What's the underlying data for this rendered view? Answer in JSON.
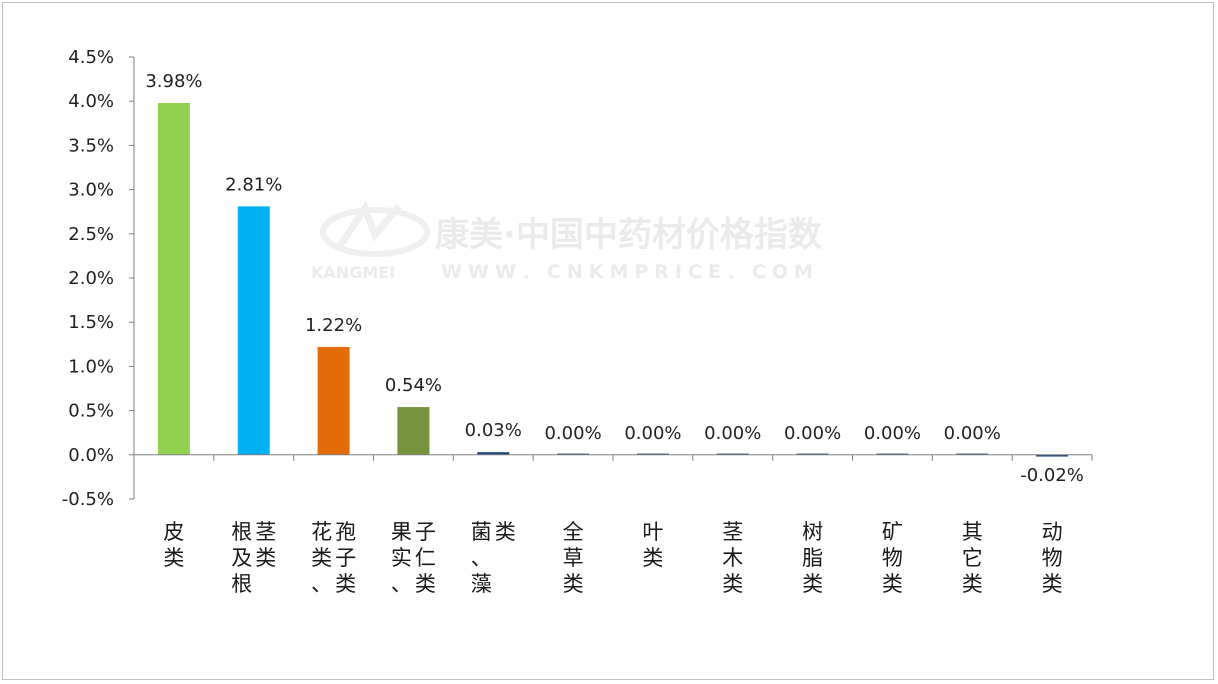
{
  "watermark": {
    "title": "康美·中国中药材价格指数",
    "brand": "KANGMEI",
    "url": "WWW．CNKMPRICE．COM"
  },
  "chart_data": {
    "type": "bar",
    "categories": [
      "皮类",
      "根及根茎类",
      "花类、孢子类",
      "果实、子仁类",
      "菌、藻类",
      "全草类",
      "叶类",
      "茎木类",
      "树脂类",
      "矿物类",
      "其它类",
      "动物类"
    ],
    "values": [
      3.98,
      2.81,
      1.22,
      0.54,
      0.03,
      0.0,
      0.0,
      0.0,
      0.0,
      0.0,
      0.0,
      -0.02
    ],
    "value_labels": [
      "3.98%",
      "2.81%",
      "1.22%",
      "0.54%",
      "0.03%",
      "0.00%",
      "0.00%",
      "0.00%",
      "0.00%",
      "0.00%",
      "0.00%",
      "-0.02%"
    ],
    "bar_colors": [
      "#92D050",
      "#00B0F0",
      "#E36C09",
      "#77933C",
      "#1F497D",
      "#1F497D",
      "#1F497D",
      "#1F497D",
      "#1F497D",
      "#1F497D",
      "#1F497D",
      "#1F497D"
    ],
    "y_ticks": [
      "4.5%",
      "4.0%",
      "3.5%",
      "3.0%",
      "2.5%",
      "2.0%",
      "1.5%",
      "1.0%",
      "0.5%",
      "0.0%",
      "-0.5%"
    ],
    "ylim": [
      -0.5,
      4.5
    ],
    "title": "",
    "xlabel": "",
    "ylabel": "",
    "grid": false,
    "legend": "none"
  }
}
